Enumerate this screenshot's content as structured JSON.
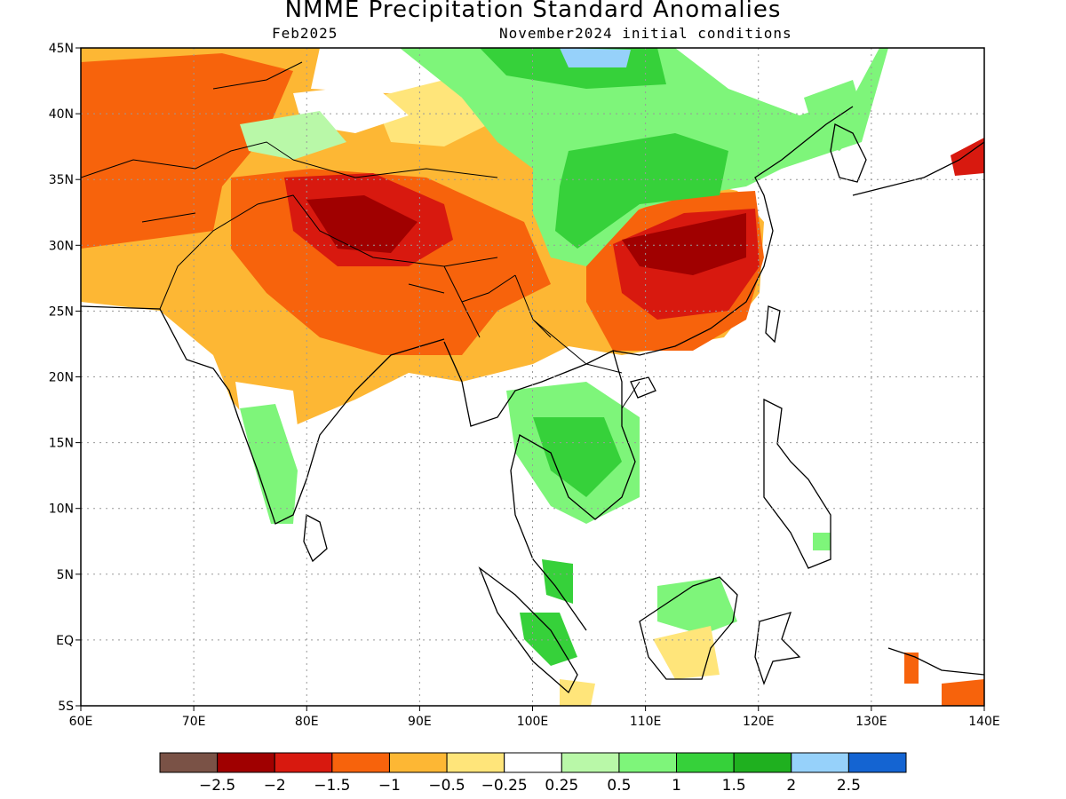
{
  "title": "NMME Precipitation Standard Anomalies",
  "target_month": "Feb2025",
  "initial_conditions": "November2024 initial conditions",
  "map": {
    "lon_range": [
      60,
      140
    ],
    "lat_range": [
      -5,
      45
    ],
    "x_ticks": [
      "60E",
      "70E",
      "80E",
      "90E",
      "100E",
      "110E",
      "120E",
      "130E",
      "140E"
    ],
    "y_ticks": [
      "45N",
      "40N",
      "35N",
      "30N",
      "25N",
      "20N",
      "15N",
      "10N",
      "5N",
      "EQ",
      "5S"
    ],
    "gridlines": "dotted"
  },
  "colorbar": {
    "colors": [
      "#7a5246",
      "#a00000",
      "#d8190f",
      "#f7630c",
      "#fdb734",
      "#ffe57a",
      "#ffffff",
      "#b9f8a8",
      "#7ef57a",
      "#36d13a",
      "#1fb01f",
      "#96d1fa",
      "#1464d2"
    ],
    "labels": [
      "−2.5",
      "−2",
      "−1.5",
      "−1",
      "−0.5",
      "−0.25",
      "0.25",
      "0.5",
      "1",
      "1.5",
      "2",
      "2.5"
    ]
  }
}
